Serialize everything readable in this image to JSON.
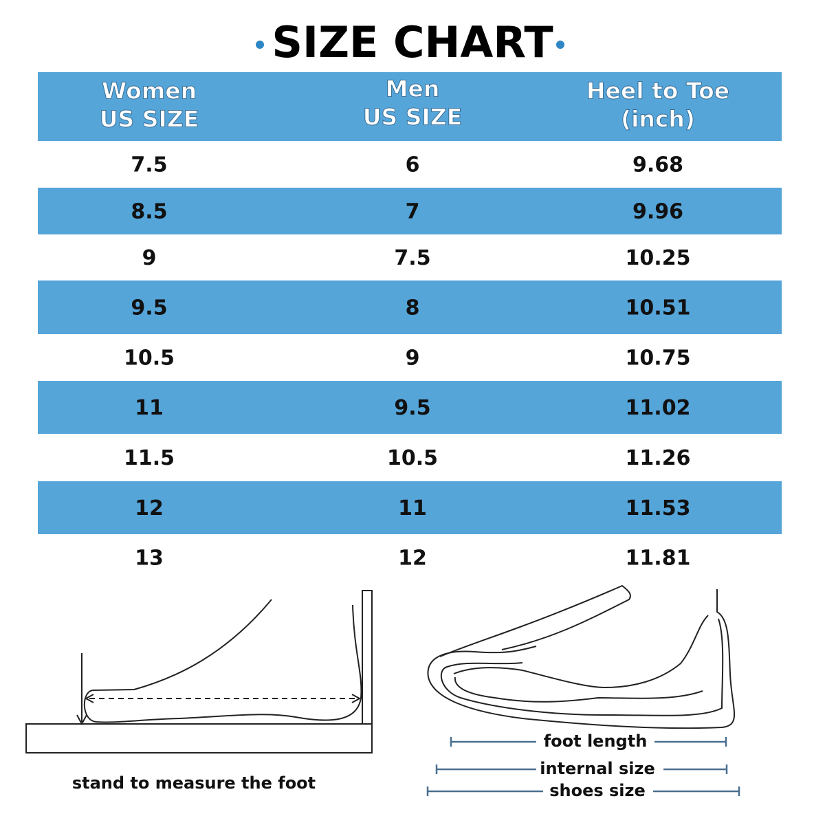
{
  "title": "SIZE CHART",
  "table": {
    "headers": [
      [
        "Women",
        "US SIZE"
      ],
      [
        "Men",
        "US SIZE"
      ],
      [
        "Heel to Toe",
        "(inch)"
      ]
    ],
    "rows": [
      [
        "7.5",
        "6",
        "9.68"
      ],
      [
        "8.5",
        "7",
        "9.96"
      ],
      [
        "9",
        "7.5",
        "10.25"
      ],
      [
        "9.5",
        "8",
        "10.51"
      ],
      [
        "10.5",
        "9",
        "10.75"
      ],
      [
        "11",
        "9.5",
        "11.02"
      ],
      [
        "11.5",
        "10.5",
        "11.26"
      ],
      [
        "12",
        "11",
        "11.53"
      ],
      [
        "13",
        "12",
        "11.81"
      ]
    ]
  },
  "illustrations": {
    "left_caption": "stand to measure the foot",
    "right_labels": [
      "foot length",
      "internal size",
      "shoes size"
    ]
  }
}
